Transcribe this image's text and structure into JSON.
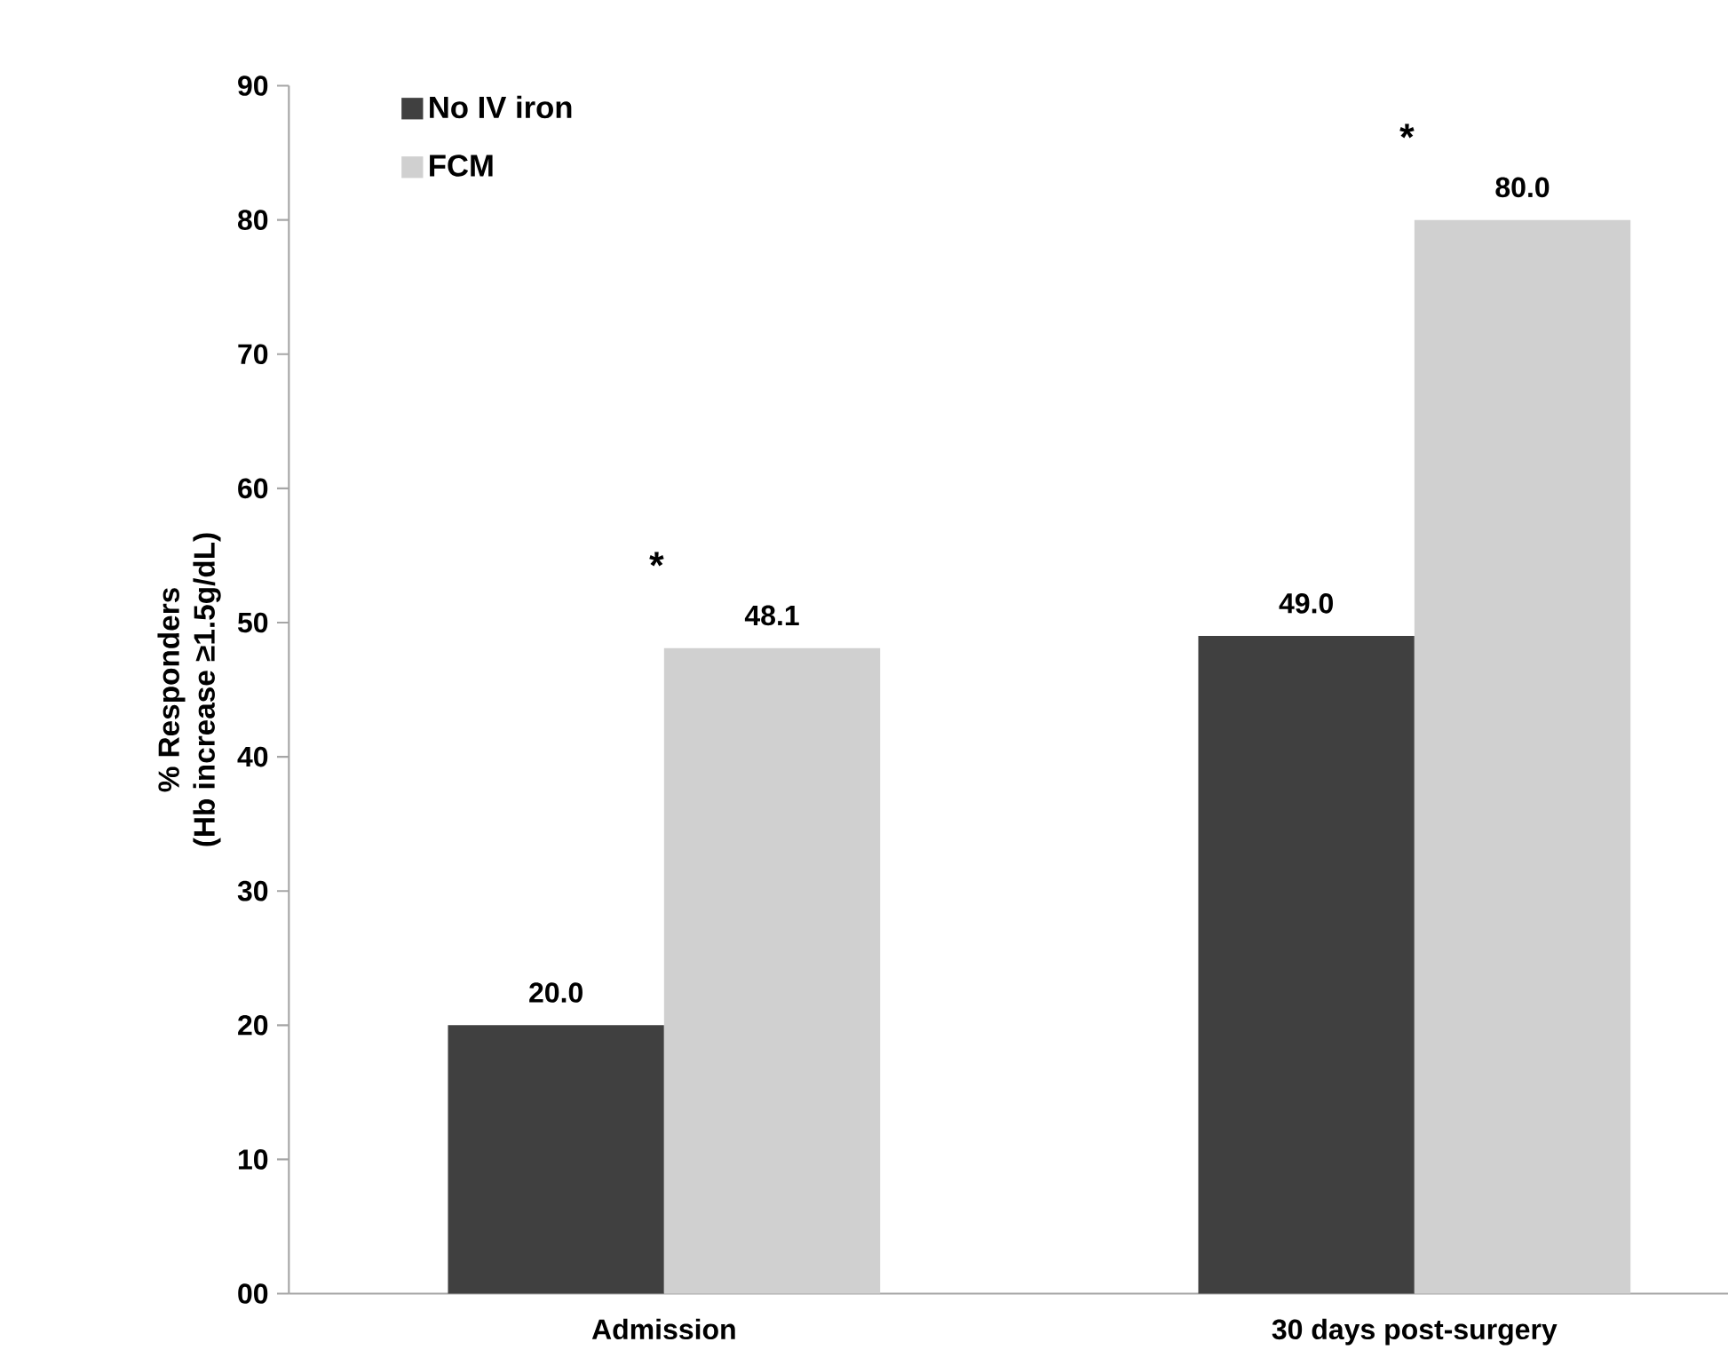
{
  "chart_data": {
    "type": "bar",
    "ylabel": "% Responders\n(Hb increase ≥1.5g/dL)",
    "categories": [
      "Admission",
      "30 days post-surgery"
    ],
    "series": [
      {
        "name": "No IV iron",
        "color": "#404040",
        "values": [
          20.0,
          49.0
        ],
        "value_labels": [
          "20.0",
          "49.0"
        ]
      },
      {
        "name": "FCM",
        "color": "#d0d0d0",
        "values": [
          48.1,
          80.0
        ],
        "value_labels": [
          "48.1",
          "80.0"
        ]
      }
    ],
    "ylim": [
      0,
      90
    ],
    "yticks": [
      {
        "value": 0,
        "label": "00"
      },
      10,
      20,
      30,
      40,
      50,
      60,
      70,
      80,
      90
    ],
    "annotations": [
      "*",
      "*"
    ],
    "legend": "top left",
    "grid": false
  }
}
